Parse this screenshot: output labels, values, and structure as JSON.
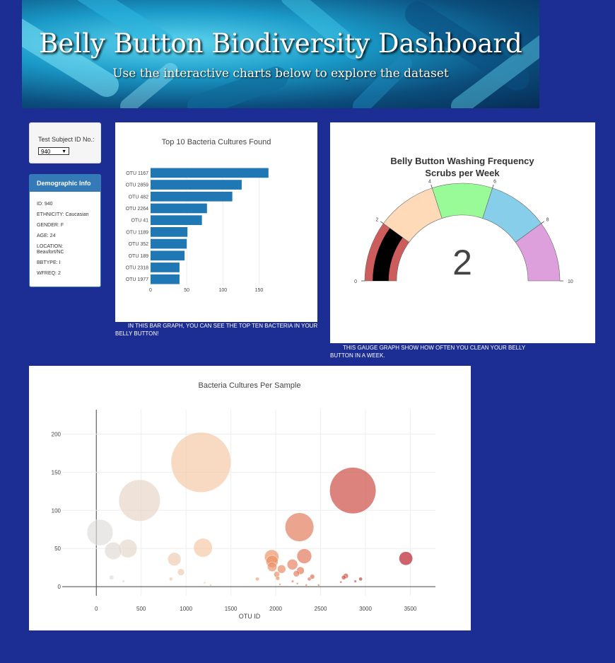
{
  "header": {
    "title": "Belly Button Biodiversity Dashboard",
    "subtitle": "Use the interactive charts below to explore the dataset"
  },
  "selector": {
    "label": "Test Subject ID No.:",
    "selected": "940"
  },
  "demographics": {
    "title": "Demographic Info",
    "rows": [
      "ID: 940",
      "ETHNICITY: Caucasian",
      "GENDER: F",
      "AGE: 24",
      "LOCATION: Beaufort/NC",
      "BBTYPE: I",
      "WFREQ: 2"
    ]
  },
  "captions": {
    "bar": "IN THIS BAR GRAPH, YOU CAN SEE THE TOP TEN BACTERIA IN YOUR BELLY BUTTON!",
    "gauge": "THIS GAUGE GRAPH SHOW HOW OFTEN YOU CLEAN YOUR BELLY BUTTON IN A WEEK."
  },
  "chart_data": [
    {
      "type": "bar",
      "orientation": "horizontal",
      "title": "Top 10 Bacteria Cultures Found",
      "categories": [
        "OTU 1167",
        "OTU 2859",
        "OTU 482",
        "OTU 2264",
        "OTU 41",
        "OTU 1189",
        "OTU 352",
        "OTU 189",
        "OTU 2318",
        "OTU 1977"
      ],
      "values": [
        163,
        126,
        113,
        78,
        71,
        51,
        50,
        47,
        40,
        40
      ],
      "xticks": [
        0,
        50,
        100,
        150
      ],
      "xlim": [
        0,
        172
      ],
      "color": "#1f77b4"
    },
    {
      "type": "gauge",
      "title": "Belly Button Washing Frequency",
      "subtitle": "Scrubs per Week",
      "value": 2,
      "range": [
        0,
        10
      ],
      "ticks": [
        0,
        2,
        4,
        6,
        8,
        10
      ],
      "steps": [
        {
          "range": [
            0,
            2
          ],
          "color": "#cd5c5c"
        },
        {
          "range": [
            2,
            4
          ],
          "color": "#ffdab9"
        },
        {
          "range": [
            4,
            6
          ],
          "color": "#98fb98"
        },
        {
          "range": [
            6,
            8
          ],
          "color": "#87ceeb"
        },
        {
          "range": [
            8,
            10
          ],
          "color": "#dda0dd"
        }
      ],
      "bar_color": "#000000"
    },
    {
      "type": "scatter",
      "title": "Bacteria Cultures Per Sample",
      "xlabel": "OTU ID",
      "ylabel": "",
      "xlim": [
        -380,
        3780
      ],
      "ylim": [
        -12,
        232
      ],
      "xticks": [
        0,
        500,
        1000,
        1500,
        2000,
        2500,
        3000,
        3500
      ],
      "yticks": [
        0,
        50,
        100,
        150,
        200
      ],
      "grid": true,
      "colorscale": "Reds",
      "points": [
        {
          "x": 41,
          "y": 71
        },
        {
          "x": 170,
          "y": 12
        },
        {
          "x": 189,
          "y": 47
        },
        {
          "x": 303,
          "y": 7
        },
        {
          "x": 352,
          "y": 50
        },
        {
          "x": 482,
          "y": 113
        },
        {
          "x": 832,
          "y": 10
        },
        {
          "x": 870,
          "y": 36
        },
        {
          "x": 943,
          "y": 19
        },
        {
          "x": 1167,
          "y": 163
        },
        {
          "x": 1189,
          "y": 51
        },
        {
          "x": 1208,
          "y": 5
        },
        {
          "x": 1274,
          "y": 2
        },
        {
          "x": 1795,
          "y": 10
        },
        {
          "x": 1955,
          "y": 39
        },
        {
          "x": 1959,
          "y": 33
        },
        {
          "x": 1960,
          "y": 26
        },
        {
          "x": 2011,
          "y": 16
        },
        {
          "x": 2022,
          "y": 11
        },
        {
          "x": 2047,
          "y": 3
        },
        {
          "x": 2065,
          "y": 23
        },
        {
          "x": 2186,
          "y": 29
        },
        {
          "x": 2188,
          "y": 7
        },
        {
          "x": 2230,
          "y": 17
        },
        {
          "x": 2241,
          "y": 4
        },
        {
          "x": 2264,
          "y": 78
        },
        {
          "x": 2275,
          "y": 21
        },
        {
          "x": 2318,
          "y": 40
        },
        {
          "x": 2340,
          "y": 2
        },
        {
          "x": 2374,
          "y": 10
        },
        {
          "x": 2407,
          "y": 13
        },
        {
          "x": 2478,
          "y": 2
        },
        {
          "x": 2726,
          "y": 6
        },
        {
          "x": 2757,
          "y": 12
        },
        {
          "x": 2781,
          "y": 14
        },
        {
          "x": 2859,
          "y": 126
        },
        {
          "x": 2887,
          "y": 7
        },
        {
          "x": 2946,
          "y": 10
        },
        {
          "x": 3450,
          "y": 37
        }
      ]
    }
  ]
}
